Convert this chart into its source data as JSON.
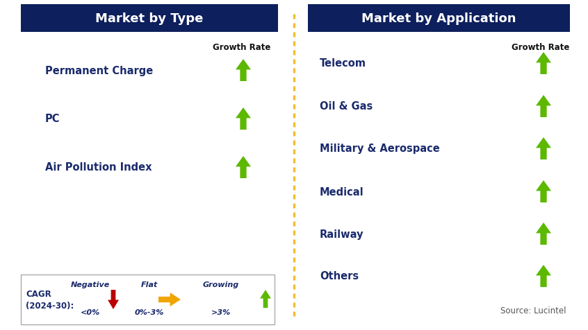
{
  "title_left": "Market by Type",
  "title_right": "Market by Application",
  "header_bg": "#0d1f5c",
  "header_text_color": "#ffffff",
  "label_color": "#1a2a6c",
  "left_items": [
    "Permanent Charge",
    "PC",
    "Air Pollution Index"
  ],
  "right_items": [
    "Telecom",
    "Oil & Gas",
    "Military & Aerospace",
    "Medical",
    "Railway",
    "Others"
  ],
  "growth_rate_label": "Growth Rate",
  "arrow_color_growing": "#5cb800",
  "arrow_color_flat": "#f0a500",
  "arrow_color_negative": "#bb0000",
  "dashed_line_color": "#f0c030",
  "source_text": "Source: Lucintel",
  "legend_cagr_line1": "CAGR",
  "legend_cagr_line2": "(2024-30):",
  "legend_negative_label": "Negative",
  "legend_negative_sublabel": "<0%",
  "legend_flat_label": "Flat",
  "legend_flat_sublabel": "0%-3%",
  "legend_growing_label": "Growing",
  "legend_growing_sublabel": ">3%",
  "bg_color": "#ffffff",
  "figw": 8.46,
  "figh": 4.77,
  "dpi": 100
}
